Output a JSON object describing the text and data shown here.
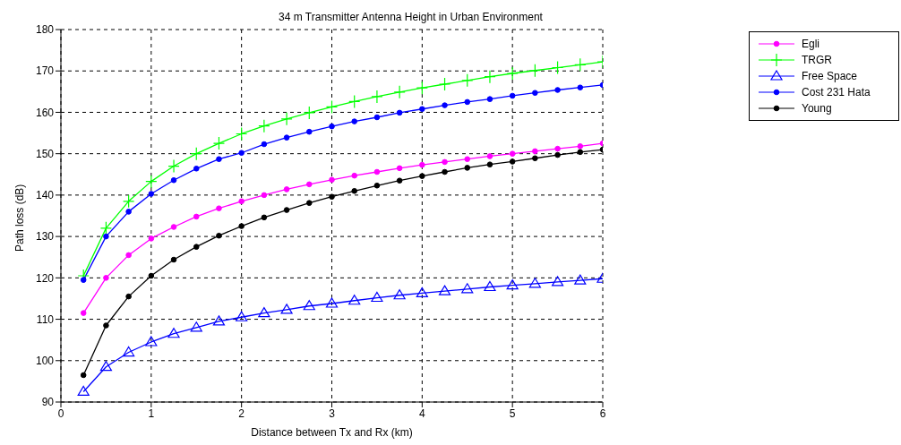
{
  "chart_data": {
    "type": "line",
    "title": "34 m Transmitter Antenna Height in Urban Environment",
    "xlabel": "Distance between Tx and Rx (km)",
    "ylabel": "Path loss (dB)",
    "x": [
      0.25,
      0.5,
      0.75,
      1,
      1.25,
      1.5,
      1.75,
      2,
      2.25,
      2.5,
      2.75,
      3,
      3.25,
      3.5,
      3.75,
      4,
      4.25,
      4.5,
      4.75,
      5,
      5.25,
      5.5,
      5.75,
      6
    ],
    "series": [
      {
        "name": "Egli",
        "color": "#ff00ff",
        "marker": "circle",
        "values": [
          111.5,
          120,
          125.5,
          129.5,
          132.3,
          134.8,
          136.8,
          138.5,
          140,
          141.4,
          142.6,
          143.7,
          144.7,
          145.6,
          146.5,
          147.3,
          148,
          148.7,
          149.4,
          150,
          150.6,
          151.2,
          151.8,
          152.5
        ]
      },
      {
        "name": "TRGR",
        "color": "#00ff00",
        "marker": "cross",
        "values": [
          120.5,
          132,
          138.5,
          143.3,
          147,
          150,
          152.5,
          154.8,
          156.7,
          158.4,
          159.9,
          161.3,
          162.6,
          163.8,
          164.9,
          165.9,
          166.8,
          167.7,
          168.6,
          169.4,
          170.1,
          170.8,
          171.5,
          172.2
        ]
      },
      {
        "name": "Free Space",
        "color": "#0000ff",
        "marker": "triangle",
        "values": [
          92.5,
          98.5,
          102,
          104.5,
          106.5,
          108,
          109.5,
          110.5,
          111.5,
          112.3,
          113.2,
          113.8,
          114.5,
          115.2,
          115.8,
          116.3,
          116.8,
          117.3,
          117.8,
          118.2,
          118.6,
          119,
          119.4,
          119.8
        ]
      },
      {
        "name": "Cost 231 Hata",
        "color": "#0000ff",
        "marker": "circle",
        "values": [
          119.5,
          130,
          136,
          140.3,
          143.6,
          146.4,
          148.7,
          150.2,
          152.3,
          153.9,
          155.3,
          156.6,
          157.8,
          158.8,
          159.9,
          160.8,
          161.7,
          162.5,
          163.2,
          164,
          164.7,
          165.4,
          166,
          166.6
        ]
      },
      {
        "name": "Young",
        "color": "#000000",
        "marker": "circle",
        "values": [
          96.5,
          108.5,
          115.5,
          120.5,
          124.4,
          127.5,
          130.2,
          132.5,
          134.6,
          136.4,
          138.1,
          139.6,
          141,
          142.3,
          143.5,
          144.6,
          145.6,
          146.6,
          147.4,
          148.1,
          148.9,
          149.7,
          150.4,
          151
        ]
      }
    ],
    "xlim": [
      0,
      6
    ],
    "xticks": [
      0,
      1,
      2,
      3,
      4,
      5,
      6
    ],
    "ylim": [
      90,
      180
    ],
    "yticks": [
      90,
      100,
      110,
      120,
      130,
      140,
      150,
      160,
      170,
      180
    ],
    "grid": true,
    "legend": "top right",
    "line_style": "solid"
  }
}
